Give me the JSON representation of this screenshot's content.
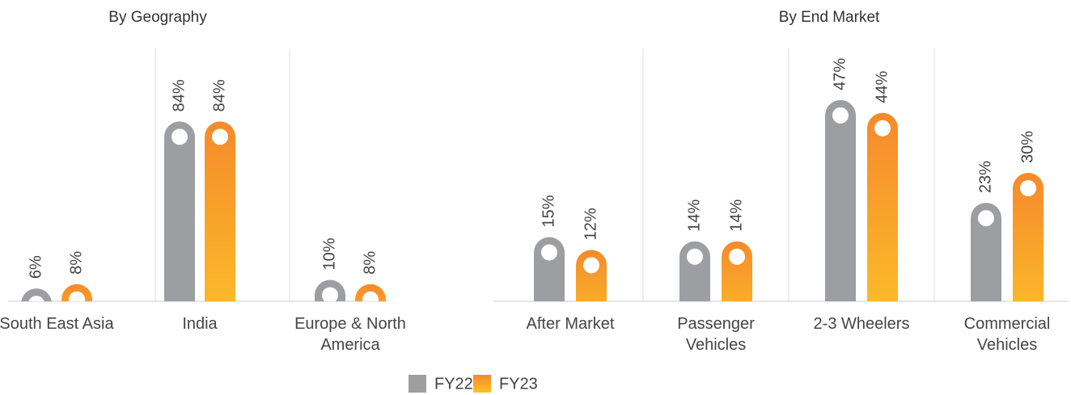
{
  "chart_data": [
    {
      "type": "bar",
      "title": "By Geography",
      "categories": [
        "South East Asia",
        "India",
        "Europe & North America"
      ],
      "series": [
        {
          "name": "FY22",
          "color": "#9d9ea2",
          "values": [
            6,
            84,
            10
          ],
          "value_labels": [
            "6%",
            "84%",
            "10%"
          ]
        },
        {
          "name": "FY23",
          "color": "#f58a2b",
          "values": [
            8,
            84,
            8
          ],
          "value_labels": [
            "8%",
            "84%",
            "8%"
          ]
        }
      ]
    },
    {
      "type": "bar",
      "title": "By End Market",
      "categories": [
        "After Market",
        "Passenger Vehicles",
        "2-3 Wheelers",
        "Commercial Vehicles"
      ],
      "series": [
        {
          "name": "FY22",
          "color": "#9d9ea2",
          "values": [
            15,
            14,
            47,
            23
          ],
          "value_labels": [
            "15%",
            "14%",
            "47%",
            "23%"
          ]
        },
        {
          "name": "FY23",
          "color": "#f58a2b",
          "values": [
            12,
            14,
            44,
            30
          ],
          "value_labels": [
            "12%",
            "14%",
            "44%",
            "30%"
          ]
        }
      ]
    }
  ]
}
